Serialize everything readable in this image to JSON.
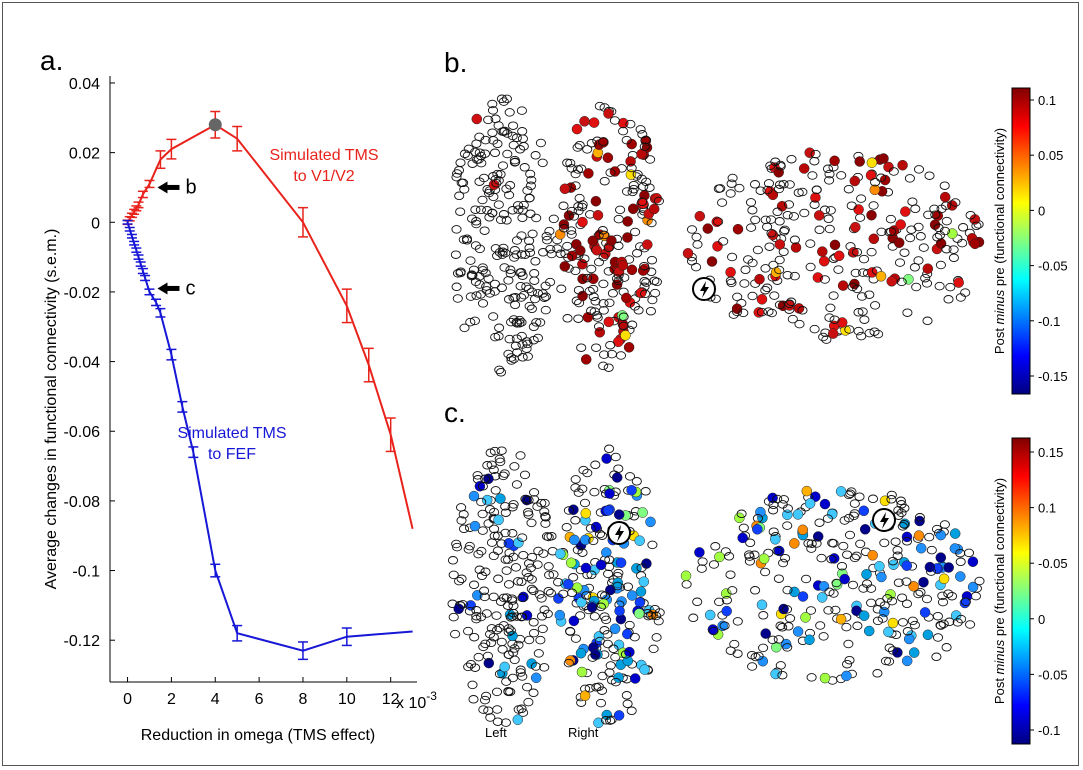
{
  "panels": {
    "a": "a.",
    "b": "b.",
    "c": "c."
  },
  "chart_data": {
    "type": "line",
    "xlabel": "Reduction in omega (TMS effect)",
    "ylabel": "Average changes in functional connectivity (s.e.m.)",
    "x_tick_labels": [
      "0",
      "2",
      "4",
      "6",
      "8",
      "10",
      "12"
    ],
    "x_multiplier": "x 10",
    "x_multiplier_exp": "-3",
    "y_tick_labels": [
      "0.04",
      "0.02",
      "0",
      "-0.02",
      "-0.04",
      "-0.06",
      "-0.08",
      "-0.1",
      "-0.12"
    ],
    "xlim": [
      -0.0008,
      0.0132
    ],
    "ylim": [
      -0.132,
      0.042
    ],
    "series": [
      {
        "name": "Simulated TMS to V1/V2",
        "label_lines": [
          "Simulated TMS",
          "to V1/V2"
        ],
        "color": "#e8231c",
        "x": [
          0,
          0.0001,
          0.0002,
          0.0003,
          0.0004,
          0.0005,
          0.0007,
          0.001,
          0.0015,
          0.002,
          0.004,
          0.005,
          0.008,
          0.01,
          0.011,
          0.012,
          0.013
        ],
        "y": [
          0,
          0.001,
          0.002,
          0.003,
          0.004,
          0.005,
          0.008,
          0.011,
          0.018,
          0.021,
          0.028,
          0.024,
          0,
          -0.024,
          -0.041,
          -0.061,
          -0.088
        ],
        "err": [
          0.0006,
          0.0006,
          0.0006,
          0.0007,
          0.0007,
          0.0008,
          0.0009,
          0.001,
          0.0025,
          0.0028,
          0.0038,
          0.0035,
          0.0042,
          0.0048,
          0.0048,
          0.0048,
          0
        ],
        "highlight": {
          "x": 0.004,
          "y": 0.028,
          "color": "#666666"
        }
      },
      {
        "name": "Simulated TMS to FEF",
        "label_lines": [
          "Simulated TMS",
          "to FEF"
        ],
        "color": "#1717d6",
        "x": [
          0,
          0.0001,
          0.0002,
          0.0003,
          0.0004,
          0.0005,
          0.0006,
          0.0007,
          0.0008,
          0.001,
          0.0013,
          0.0015,
          0.002,
          0.0025,
          0.003,
          0.004,
          0.005,
          0.008,
          0.01,
          0.013
        ],
        "y": [
          0,
          -0.002,
          -0.004,
          -0.006,
          -0.008,
          -0.01,
          -0.012,
          -0.014,
          -0.016,
          -0.02,
          -0.023,
          -0.026,
          -0.038,
          -0.053,
          -0.066,
          -0.1,
          -0.118,
          -0.123,
          -0.119,
          -0.1175
        ],
        "err": [
          0.0005,
          0.0005,
          0.0005,
          0.0005,
          0.0006,
          0.0006,
          0.0006,
          0.0007,
          0.0007,
          0.0008,
          0.0009,
          0.0012,
          0.0015,
          0.0015,
          0.0015,
          0.0018,
          0.0022,
          0.0025,
          0.0025,
          0
        ]
      }
    ],
    "annotations": [
      {
        "text": "b",
        "x": 0.001,
        "y": 0.01
      },
      {
        "text": "c",
        "x": 0.001,
        "y": -0.019
      }
    ]
  },
  "brain_panels": {
    "left_label": "Left",
    "right_label": "Right",
    "colorbar_b": {
      "label_plain_1": "Post ",
      "label_italic": "minus",
      "label_plain_2": " pre (functional connectivity)",
      "ticks": [
        "0.1",
        "0.05",
        "0",
        "-0.05",
        "-0.1",
        "-0.15"
      ]
    },
    "colorbar_c": {
      "label_plain_1": "Post ",
      "label_italic": "minus",
      "label_plain_2": " pre (functional connectivity)",
      "ticks": [
        "0.15",
        "0.1",
        "-0.05",
        "0",
        "-0.05",
        "-0.1"
      ]
    },
    "colormap": [
      "#000080",
      "#0000ff",
      "#0080ff",
      "#00ffff",
      "#80ff80",
      "#ffff00",
      "#ff8000",
      "#ff0000",
      "#800000"
    ]
  }
}
